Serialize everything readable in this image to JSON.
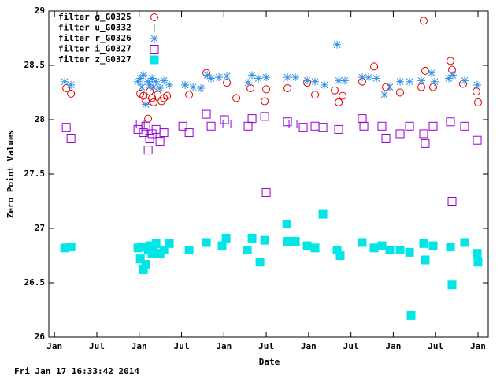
{
  "chart_data": {
    "type": "scatter",
    "xlabel": "Date",
    "ylabel": "Zero Point Values",
    "footer": "Fri Jan 17 16:33:42 2014",
    "legend": "top-left",
    "grid": false,
    "xlim": [
      -0.8,
      61.45
    ],
    "xticks": [
      {
        "value": 0,
        "label": "Jan"
      },
      {
        "value": 6,
        "label": "Jul"
      },
      {
        "value": 12,
        "label": "Jan"
      },
      {
        "value": 18,
        "label": "Jul"
      },
      {
        "value": 24,
        "label": "Jan"
      },
      {
        "value": 30,
        "label": "Jul"
      },
      {
        "value": 36,
        "label": "Jan"
      },
      {
        "value": 42,
        "label": "Jul"
      },
      {
        "value": 48,
        "label": "Jan"
      },
      {
        "value": 54,
        "label": "Jul"
      },
      {
        "value": 60,
        "label": "Jan"
      }
    ],
    "ylim": [
      26,
      29
    ],
    "yticks": [
      26,
      26.5,
      27,
      27.5,
      28,
      28.5,
      29
    ],
    "series": [
      {
        "name": "filter g_G0325",
        "color": "#e00000",
        "marker": "circle",
        "x": [
          1.67,
          2.34,
          12.16,
          12.6,
          12.94,
          13.27,
          13.49,
          13.83,
          14.05,
          14.61,
          15.17,
          15.5,
          15.95,
          19.07,
          21.52,
          24.42,
          25.76,
          27.77,
          29.78,
          30,
          33.01,
          35.8,
          36.91,
          39.7,
          40.26,
          40.82,
          43.6,
          45.28,
          46.95,
          48.96,
          51.97,
          52.3,
          52.52,
          53.64,
          56.09,
          56.32,
          57.88,
          59.77,
          60
        ],
        "values": [
          28.29,
          28.24,
          28.24,
          28.22,
          28.17,
          28.01,
          28.26,
          28.2,
          28.16,
          28.23,
          28.17,
          28.2,
          28.22,
          28.23,
          28.43,
          28.34,
          28.2,
          28.29,
          28.17,
          28.28,
          28.29,
          28.34,
          28.23,
          28.27,
          28.16,
          28.22,
          28.35,
          28.49,
          28.3,
          28.25,
          28.3,
          28.91,
          28.45,
          28.3,
          28.54,
          28.46,
          28.33,
          28.26,
          28.16
        ]
      },
      {
        "name": "filter u_G0332",
        "color": "#00a000",
        "marker": "plus",
        "x": [],
        "values": []
      },
      {
        "name": "filter r_G0326",
        "color": "#2f8fe8",
        "marker": "star",
        "x": [
          1.45,
          2.34,
          11.82,
          12.16,
          12.38,
          12.6,
          12.94,
          13.27,
          13.49,
          13.83,
          14.05,
          14.39,
          14.94,
          15.5,
          16.28,
          18.51,
          19.63,
          20.74,
          21.64,
          22.19,
          23.31,
          24.42,
          27.43,
          27.99,
          28.88,
          30,
          33.01,
          34.13,
          35.8,
          36.91,
          38.25,
          40.04,
          40.26,
          41.15,
          43.6,
          44.5,
          45.61,
          46.73,
          47.51,
          48.96,
          50.3,
          51.97,
          53.42,
          53.86,
          55.87,
          56.43,
          58.1,
          59.89
        ],
        "values": [
          28.35,
          28.32,
          28.35,
          28.38,
          28.3,
          28.41,
          28.14,
          28.35,
          28.32,
          28.38,
          28.3,
          28.35,
          28.29,
          28.36,
          28.32,
          28.32,
          28.3,
          28.29,
          28.41,
          28.38,
          28.39,
          28.4,
          28.34,
          28.41,
          28.38,
          28.39,
          28.39,
          28.39,
          28.36,
          28.35,
          28.32,
          28.69,
          28.36,
          28.36,
          28.39,
          28.39,
          28.38,
          28.23,
          28.3,
          28.35,
          28.35,
          28.36,
          28.43,
          28.35,
          28.38,
          28.41,
          28.36,
          28.32
        ]
      },
      {
        "name": "filter i_G0327",
        "color": "#9400d3",
        "marker": "square",
        "x": [
          1.67,
          2.34,
          11.82,
          12.16,
          12.6,
          12.94,
          13.27,
          13.49,
          13.83,
          14.39,
          14.94,
          15.5,
          18.18,
          19.07,
          21.52,
          22.19,
          24.09,
          24.42,
          27.43,
          27.99,
          29.78,
          30,
          33.01,
          33.79,
          35.24,
          36.91,
          38.03,
          40.26,
          43.6,
          43.83,
          46.39,
          46.95,
          48.96,
          50.3,
          52.3,
          52.52,
          53.64,
          56.09,
          56.32,
          58.1,
          59.89
        ],
        "values": [
          27.93,
          27.83,
          27.91,
          27.96,
          27.88,
          27.94,
          27.72,
          27.83,
          27.87,
          27.91,
          27.8,
          27.88,
          27.94,
          27.88,
          28.05,
          27.94,
          28,
          27.96,
          27.94,
          28.01,
          28.03,
          27.33,
          27.98,
          27.96,
          27.93,
          27.94,
          27.93,
          27.91,
          28.01,
          27.94,
          27.94,
          27.83,
          27.87,
          27.94,
          27.87,
          27.78,
          27.94,
          27.98,
          27.25,
          27.94,
          27.81
        ]
      },
      {
        "name": "filter z_G0327",
        "color": "#00e5e5",
        "marker": "filled-square",
        "x": [
          1.45,
          2.34,
          11.82,
          12.16,
          12.38,
          12.6,
          12.94,
          13.27,
          13.49,
          13.83,
          14.05,
          14.39,
          14.94,
          15.5,
          16.28,
          19.07,
          21.52,
          23.75,
          24.31,
          27.32,
          27.99,
          29.11,
          29.78,
          32.9,
          33.01,
          34.13,
          35.8,
          36.91,
          38.03,
          40.04,
          40.48,
          43.6,
          45.28,
          46.39,
          47.51,
          48.96,
          50.3,
          50.52,
          52.3,
          52.52,
          53.64,
          56.09,
          56.32,
          58.1,
          59.89,
          60
        ],
        "values": [
          26.82,
          26.83,
          26.82,
          26.72,
          26.83,
          26.62,
          26.67,
          26.8,
          26.84,
          26.77,
          26.8,
          26.86,
          26.77,
          26.8,
          26.86,
          26.8,
          26.87,
          26.84,
          26.91,
          26.8,
          26.91,
          26.69,
          26.89,
          27.04,
          26.88,
          26.88,
          26.84,
          26.82,
          27.13,
          26.8,
          26.75,
          26.87,
          26.82,
          26.84,
          26.8,
          26.8,
          26.78,
          26.2,
          26.86,
          26.71,
          26.84,
          26.83,
          26.48,
          26.87,
          26.77,
          26.69
        ]
      }
    ]
  }
}
